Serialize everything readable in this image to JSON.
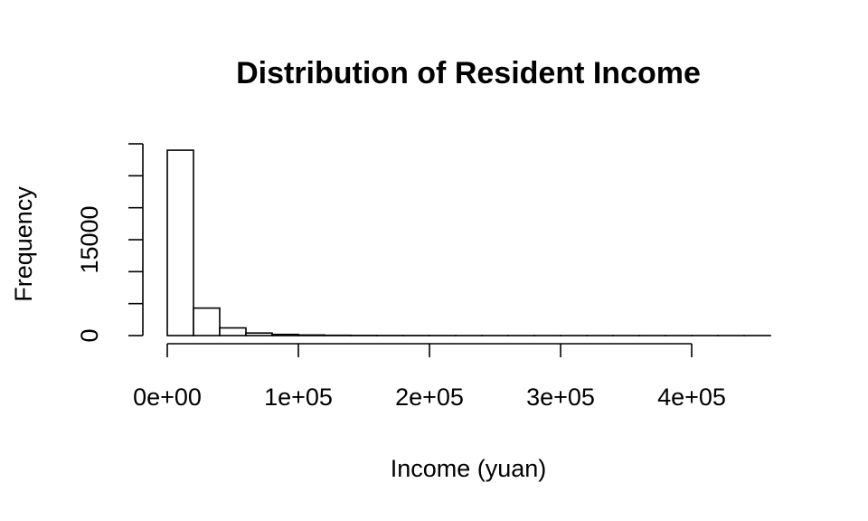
{
  "chart_data": {
    "type": "bar",
    "title": "Distribution of Resident Income",
    "xlabel": "Income (yuan)",
    "ylabel": "Frequency",
    "bin_width": 20000,
    "bins_start": 0,
    "values": [
      29000,
      4300,
      1200,
      400,
      180,
      90,
      45,
      25,
      15,
      10,
      7,
      5,
      4,
      3,
      2,
      2,
      1,
      1,
      1,
      1,
      1,
      1,
      1
    ],
    "xlim": [
      0,
      460000
    ],
    "ylim": [
      0,
      30000
    ],
    "x_tick_values": [
      0,
      100000,
      200000,
      300000,
      400000
    ],
    "x_tick_labels": [
      "0e+00",
      "1e+05",
      "2e+05",
      "3e+05",
      "4e+05"
    ],
    "y_tick_values": [
      0,
      5000,
      10000,
      15000,
      20000,
      25000,
      30000
    ],
    "y_tick_labels": [
      "0",
      "",
      "",
      "15000",
      "",
      "",
      ""
    ],
    "grid": false,
    "legend": "none"
  }
}
